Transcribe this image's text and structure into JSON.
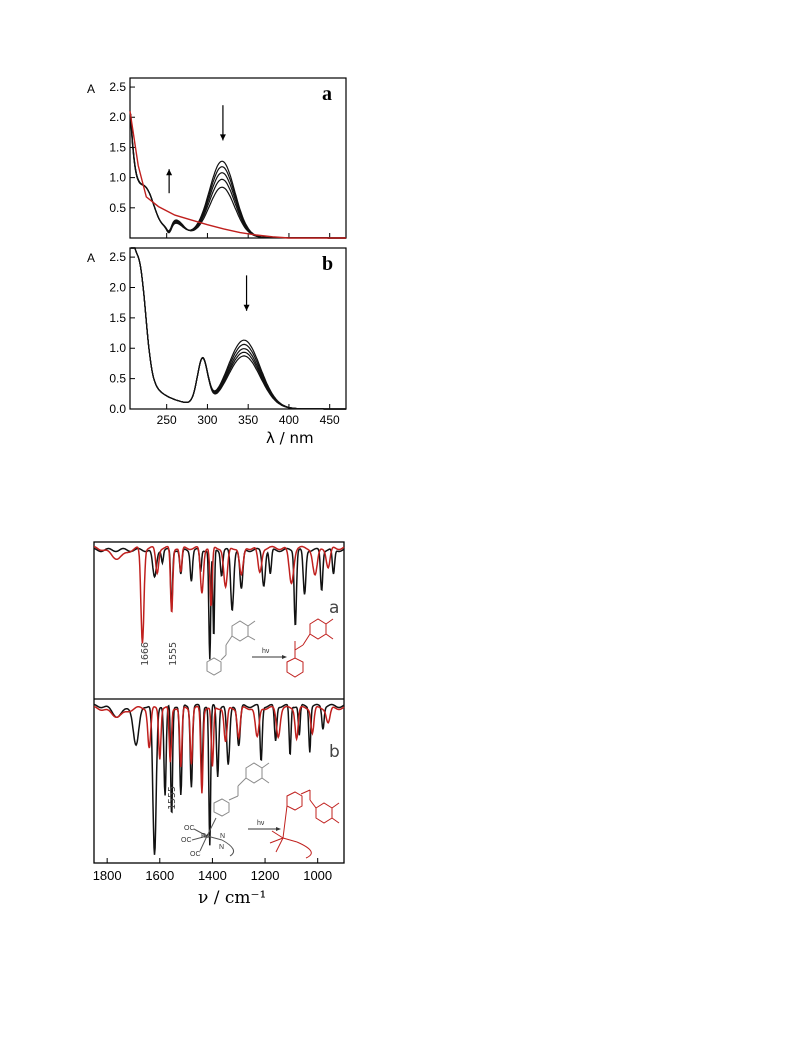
{
  "colors": {
    "black": "#111111",
    "red": "#c0201e",
    "gray": "#8a8a8a",
    "frame": "#000000"
  },
  "chart_data": [
    {
      "type": "line",
      "panel_label": "a",
      "ylabel": "A",
      "xlim": [
        205,
        470
      ],
      "ylim": [
        0,
        2.65
      ],
      "yticks": [
        0.5,
        1.0,
        1.5,
        2.0,
        2.5
      ],
      "ytick_labels": [
        "0.5",
        "1.0",
        "1.5",
        "2.0",
        "2.5"
      ],
      "xticks": [
        250,
        300,
        350,
        400,
        450
      ],
      "xtick_labels": [
        "",
        "",
        "",
        "",
        ""
      ],
      "series": [
        {
          "color": "black",
          "peak": 1.25,
          "base": 1.62,
          "dip": 0.32
        },
        {
          "color": "black",
          "peak": 1.16,
          "base": 1.6,
          "dip": 0.33
        },
        {
          "color": "black",
          "peak": 1.06,
          "base": 1.58,
          "dip": 0.34
        },
        {
          "color": "black",
          "peak": 0.95,
          "base": 1.56,
          "dip": 0.35
        },
        {
          "color": "black",
          "peak": 0.82,
          "base": 1.54,
          "dip": 0.36
        },
        {
          "color": "red",
          "x": [
            205,
            215,
            225,
            240,
            260,
            280,
            300,
            320,
            340,
            360,
            380,
            400,
            470
          ],
          "y": [
            2.1,
            1.2,
            0.68,
            0.52,
            0.38,
            0.3,
            0.22,
            0.15,
            0.09,
            0.05,
            0.02,
            0.0,
            0.0
          ]
        }
      ],
      "arrows": [
        {
          "x": 319,
          "dir": "down"
        },
        {
          "x": 253,
          "dir": "up"
        }
      ]
    },
    {
      "type": "line",
      "panel_label": "b",
      "ylabel": "A",
      "xlabel": "λ / nm",
      "xlim": [
        205,
        470
      ],
      "ylim": [
        0,
        2.65
      ],
      "yticks": [
        0.0,
        0.5,
        1.0,
        1.5,
        2.0,
        2.5
      ],
      "ytick_labels": [
        "0.0",
        "0.5",
        "1.0",
        "1.5",
        "2.0",
        "2.5"
      ],
      "xticks": [
        250,
        300,
        350,
        400,
        450
      ],
      "xtick_labels": [
        "250",
        "300",
        "350",
        "400",
        "450"
      ],
      "series": [
        {
          "color": "black",
          "peak": 1.12
        },
        {
          "color": "black",
          "peak": 1.05
        },
        {
          "color": "black",
          "peak": 0.98
        },
        {
          "color": "black",
          "peak": 0.92
        },
        {
          "color": "black",
          "peak": 0.86
        }
      ],
      "arrows": [
        {
          "x": 348,
          "dir": "down"
        }
      ]
    },
    {
      "type": "line",
      "xlabel": "ν / cm⁻¹",
      "xlim": [
        1850,
        900
      ],
      "xticks": [
        1800,
        1600,
        1400,
        1200,
        1000
      ],
      "xtick_labels": [
        "1800",
        "1600",
        "1400",
        "1200",
        "1000"
      ],
      "panels": [
        {
          "label": "a",
          "peak_labels": [
            "1666",
            "1555"
          ],
          "scheme": {
            "arrow_label": "hν",
            "before": "N-oxide (gray)",
            "after": "amide (red)"
          }
        },
        {
          "label": "b",
          "peak_labels": [
            "1555"
          ],
          "scheme": {
            "arrow_label": "hν",
            "re_labels": [
              "OC",
              "OC",
              "OC",
              "Re",
              "N",
              "N"
            ]
          }
        }
      ]
    }
  ]
}
